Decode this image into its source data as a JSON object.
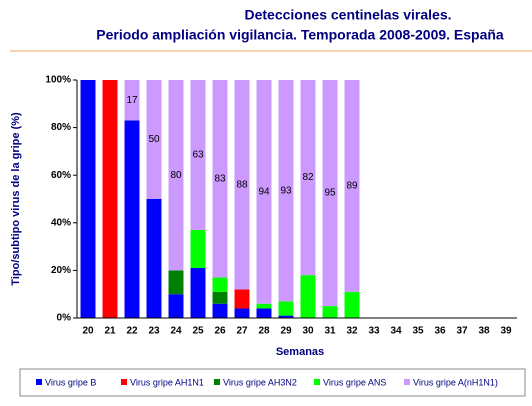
{
  "chart_data": {
    "type": "stacked_bar",
    "title": "Detecciones centinelas virales.",
    "subtitle": "Periodo ampliación vigilancia. Temporada 2008-2009. España",
    "xlabel": "Semanas",
    "ylabel": "Tipo/subtipo virus de la gripe (%)",
    "categories": [
      "20",
      "21",
      "22",
      "23",
      "24",
      "25",
      "26",
      "27",
      "28",
      "29",
      "30",
      "31",
      "32",
      "33",
      "34",
      "35",
      "36",
      "37",
      "38",
      "39"
    ],
    "series": [
      {
        "name": "Virus gripe B",
        "color": "#0000ff",
        "values": [
          100,
          null,
          83,
          50,
          10,
          21,
          6,
          4,
          4,
          1,
          null,
          null,
          null,
          null,
          null,
          null,
          null,
          null,
          null,
          null
        ]
      },
      {
        "name": "Virus gripe AH1N1",
        "color": "#ff0000",
        "values": [
          null,
          100,
          null,
          null,
          null,
          null,
          null,
          8,
          null,
          null,
          null,
          null,
          null,
          null,
          null,
          null,
          null,
          null,
          null,
          null
        ]
      },
      {
        "name": "Virus gripe AH3N2",
        "color": "#008000",
        "values": [
          null,
          null,
          null,
          null,
          10,
          null,
          5,
          null,
          null,
          null,
          null,
          null,
          null,
          null,
          null,
          null,
          null,
          null,
          null,
          null
        ]
      },
      {
        "name": "Virus gripe ANS",
        "color": "#00ff00",
        "values": [
          null,
          null,
          null,
          null,
          null,
          16,
          6,
          null,
          2,
          6,
          18,
          5,
          11,
          null,
          null,
          null,
          null,
          null,
          null,
          null
        ]
      },
      {
        "name": "Virus gripe A(nH1N1)",
        "color": "#cc99ff",
        "values": [
          null,
          null,
          17,
          50,
          80,
          63,
          83,
          88,
          94,
          93,
          82,
          95,
          89,
          null,
          null,
          null,
          null,
          null,
          null,
          null
        ]
      }
    ],
    "labeled_series": 4,
    "ylim": [
      0,
      100
    ],
    "yticks": [
      {
        "value": 0,
        "label": "0%"
      },
      {
        "value": 20,
        "label": "20%"
      },
      {
        "value": 40,
        "label": "40%"
      },
      {
        "value": 60,
        "label": "60%"
      },
      {
        "value": 80,
        "label": "80%"
      },
      {
        "value": 100,
        "label": "100%"
      }
    ]
  }
}
